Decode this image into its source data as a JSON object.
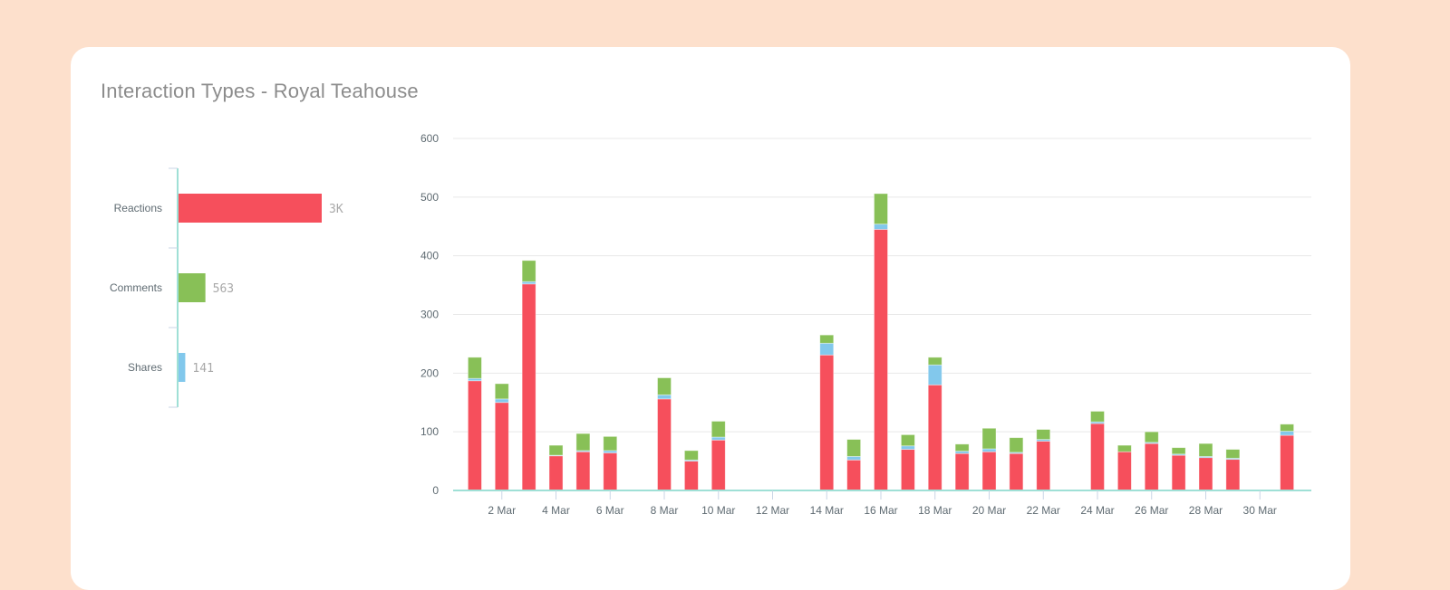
{
  "title": "Interaction Types - Royal Teahouse",
  "colors": {
    "reactions": "#f64f5c",
    "comments": "#88c057",
    "shares": "#82c8ec",
    "axis": "#9fe0d6",
    "grid": "#e8e8e8"
  },
  "chart_data": [
    {
      "type": "bar",
      "orientation": "horizontal",
      "categories": [
        "Reactions",
        "Comments",
        "Shares"
      ],
      "values": [
        3000,
        563,
        141
      ],
      "value_labels": [
        "3K",
        "563",
        "141"
      ]
    },
    {
      "type": "bar",
      "stacked": true,
      "x": [
        1,
        2,
        3,
        4,
        5,
        6,
        8,
        9,
        10,
        14,
        15,
        16,
        17,
        18,
        19,
        20,
        21,
        22,
        24,
        25,
        26,
        27,
        28,
        29,
        31
      ],
      "xticks": [
        2,
        4,
        6,
        8,
        10,
        12,
        14,
        16,
        18,
        20,
        22,
        24,
        26,
        28,
        30
      ],
      "xtick_labels": [
        "2 Mar",
        "4 Mar",
        "6 Mar",
        "8 Mar",
        "10 Mar",
        "12 Mar",
        "14 Mar",
        "16 Mar",
        "18 Mar",
        "20 Mar",
        "22 Mar",
        "24 Mar",
        "26 Mar",
        "28 Mar",
        "30 Mar"
      ],
      "ylim": [
        0,
        600
      ],
      "yticks": [
        0,
        100,
        200,
        300,
        400,
        500,
        600
      ],
      "grid": true,
      "series": [
        {
          "key": "reactions",
          "values": [
            187,
            150,
            352,
            59,
            66,
            64,
            156,
            50,
            86,
            231,
            52,
            445,
            70,
            180,
            63,
            66,
            63,
            84,
            114,
            66,
            80,
            60,
            56,
            53,
            94
          ]
        },
        {
          "key": "shares",
          "values": [
            4,
            6,
            4,
            1,
            2,
            4,
            7,
            2,
            5,
            20,
            6,
            9,
            6,
            34,
            4,
            5,
            2,
            3,
            3,
            0,
            2,
            2,
            2,
            2,
            7
          ]
        },
        {
          "key": "comments",
          "values": [
            36,
            26,
            36,
            17,
            29,
            24,
            29,
            16,
            27,
            14,
            29,
            52,
            19,
            13,
            12,
            35,
            25,
            17,
            18,
            11,
            18,
            11,
            22,
            15,
            12
          ]
        }
      ]
    }
  ]
}
